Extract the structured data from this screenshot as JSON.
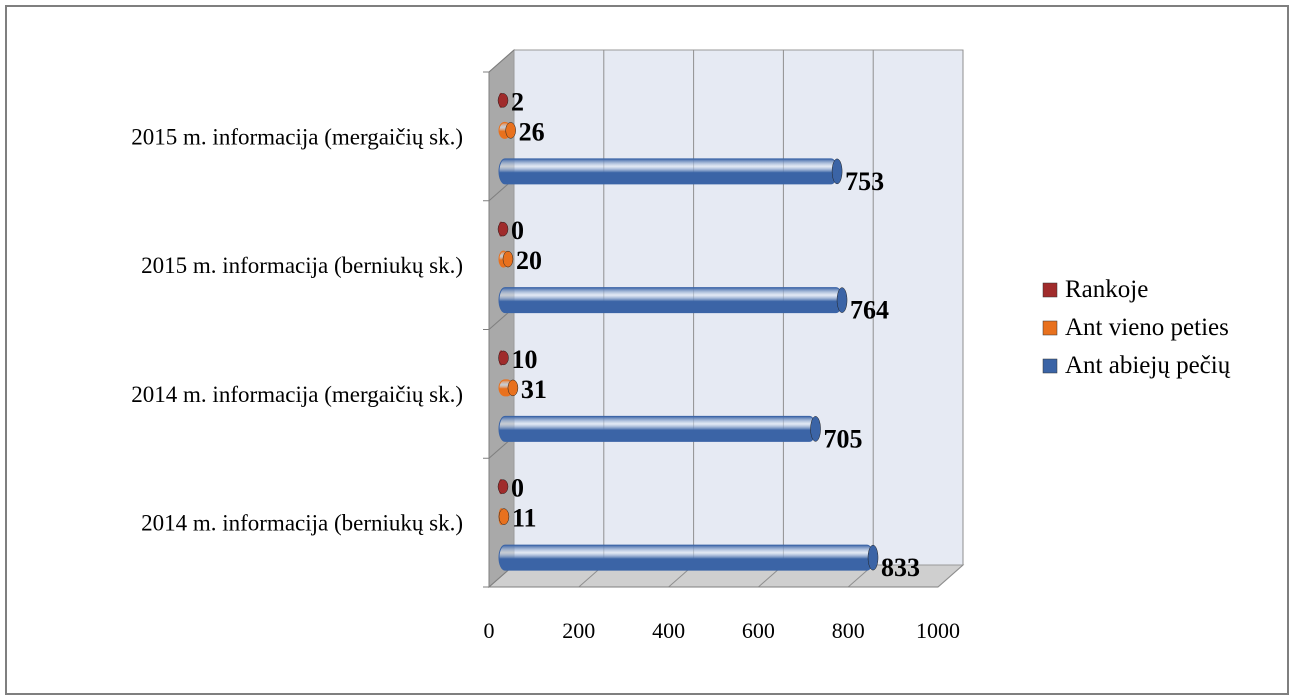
{
  "chart_data": {
    "type": "bar",
    "orientation": "horizontal",
    "style": "3d-cylinder",
    "categories": [
      "2014 m. informacija (berniukų sk.)",
      "2014 m. informacija (mergaičių sk.)",
      "2015 m. informacija (berniukų sk.)",
      "2015 m. informacija (mergaičių sk.)"
    ],
    "series": [
      {
        "name": "Ant abiejų pečių",
        "color": "#3b64a6",
        "values": [
          833,
          705,
          764,
          753
        ]
      },
      {
        "name": "Ant vieno peties",
        "color": "#e8711e",
        "values": [
          11,
          31,
          20,
          26
        ]
      },
      {
        "name": "Rankoje",
        "color": "#a02b2b",
        "values": [
          0,
          10,
          0,
          2
        ]
      }
    ],
    "xlim": [
      0,
      1000
    ],
    "xticks": [
      0,
      200,
      400,
      600,
      800,
      1000
    ],
    "grid": true,
    "legend_position": "right",
    "legend_order": [
      "Rankoje",
      "Ant vieno peties",
      "Ant abiejų pečių"
    ]
  }
}
